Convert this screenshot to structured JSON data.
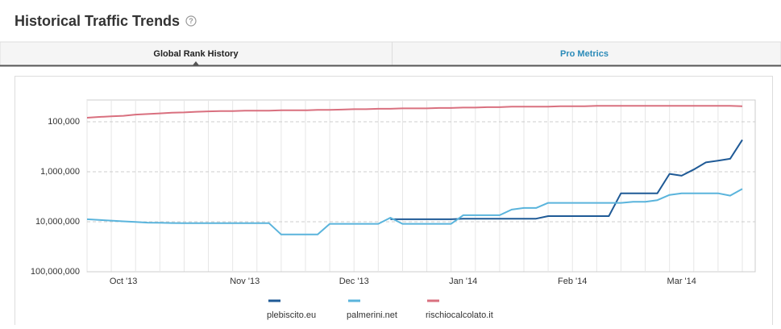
{
  "header": {
    "title": "Historical Traffic Trends",
    "help_icon": "?"
  },
  "tabs": [
    "Global Rank History",
    "Pro Metrics"
  ],
  "chart_data": {
    "type": "line",
    "log_scale": true,
    "grid": true,
    "legend_position": "bottom",
    "categories": [
      null,
      null,
      null,
      "Oct '13",
      null,
      null,
      null,
      null,
      null,
      null,
      null,
      null,
      null,
      "Nov '13",
      null,
      null,
      null,
      null,
      null,
      null,
      null,
      null,
      "Dec '13",
      null,
      null,
      null,
      null,
      null,
      null,
      null,
      null,
      "Jan '14",
      null,
      null,
      null,
      null,
      null,
      null,
      null,
      null,
      "Feb '14",
      null,
      null,
      null,
      null,
      null,
      null,
      null,
      null,
      "Mar '14",
      null,
      null,
      null,
      null,
      null
    ],
    "ylim": [
      100000000,
      36700
    ],
    "yticks": [
      {
        "value": 100000,
        "label": "100,000"
      },
      {
        "value": 1000000,
        "label": "1,000,000"
      },
      {
        "value": 10000000,
        "label": "10,000,000"
      },
      {
        "value": 100000000,
        "label": "100,000,000"
      }
    ],
    "series": [
      {
        "name": "plebiscito.eu",
        "color": "#1f5a96",
        "values": [
          null,
          null,
          null,
          null,
          null,
          null,
          null,
          null,
          null,
          null,
          null,
          null,
          null,
          null,
          null,
          null,
          null,
          null,
          null,
          null,
          null,
          null,
          null,
          null,
          null,
          8900000,
          8900000,
          8900000,
          8900000,
          8900000,
          8900000,
          8700000,
          8700000,
          8700000,
          8700000,
          8700000,
          8700000,
          8700000,
          7700000,
          7700000,
          7700000,
          7700000,
          7700000,
          7700000,
          2700000,
          2700000,
          2700000,
          2700000,
          1100000,
          1200000,
          900000,
          650000,
          600000,
          550000,
          230000
        ]
      },
      {
        "name": "palmerini.net",
        "color": "#5ab4dc",
        "values": [
          8900000,
          9200000,
          9500000,
          9800000,
          10100000,
          10400000,
          10500000,
          10600000,
          10700000,
          10700000,
          10700000,
          10700000,
          10700000,
          10700000,
          10700000,
          10700000,
          18000000,
          18000000,
          18000000,
          18000000,
          11000000,
          11000000,
          11000000,
          11000000,
          11000000,
          8300000,
          11000000,
          11000000,
          11000000,
          11000000,
          11000000,
          7400000,
          7400000,
          7400000,
          7400000,
          5700000,
          5300000,
          5300000,
          4200000,
          4200000,
          4200000,
          4200000,
          4200000,
          4200000,
          4200000,
          4000000,
          4000000,
          3700000,
          2900000,
          2700000,
          2700000,
          2700000,
          2700000,
          3000000,
          2200000
        ]
      },
      {
        "name": "rischiocalcolato.it",
        "color": "#d9707f",
        "values": [
          83000,
          80000,
          78000,
          76000,
          72000,
          70000,
          68000,
          66000,
          65000,
          63000,
          62000,
          61000,
          61000,
          60000,
          60000,
          60000,
          59000,
          59000,
          59000,
          58000,
          58000,
          57000,
          56000,
          56000,
          55000,
          55000,
          54000,
          54000,
          54000,
          53000,
          53000,
          52000,
          52000,
          51000,
          51000,
          50000,
          50000,
          50000,
          50000,
          49000,
          49000,
          49000,
          48000,
          48000,
          48000,
          48000,
          48000,
          48000,
          48000,
          48000,
          48000,
          48000,
          48000,
          48000,
          49000
        ]
      }
    ]
  }
}
